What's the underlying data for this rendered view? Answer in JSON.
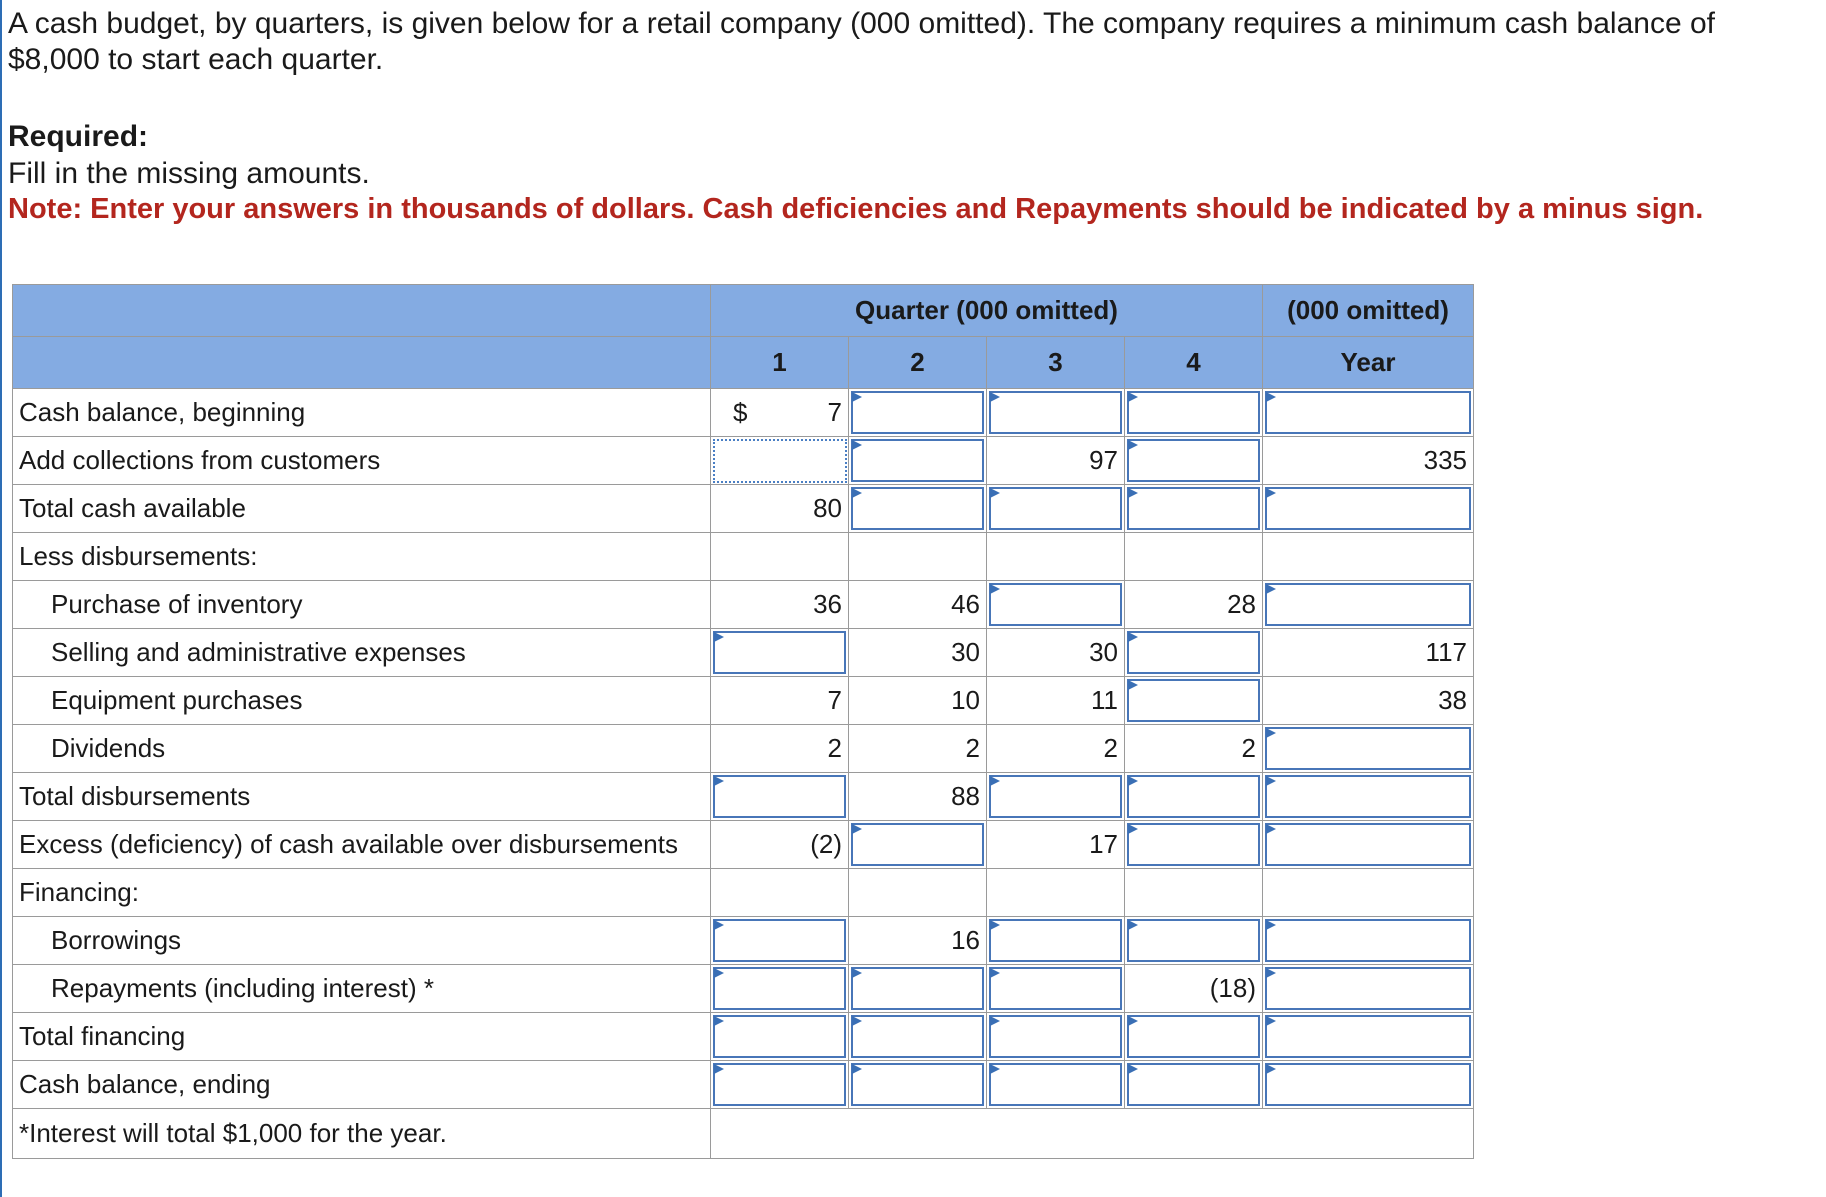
{
  "intro": "A cash budget, by quarters, is given below for a retail company (000 omitted). The company requires a minimum cash balance of $8,000 to start each quarter.",
  "required": {
    "heading": "Required:",
    "text": "Fill in the missing amounts.",
    "note": "Note: Enter your answers in thousands of dollars. Cash deficiencies and Repayments should be indicated by a minus sign."
  },
  "table": {
    "header_quarter": "Quarter (000 omitted)",
    "header_year_group": "(000 omitted)",
    "columns": [
      "1",
      "2",
      "3",
      "4",
      "Year"
    ],
    "currency": "$",
    "rows": [
      {
        "label": "Cash balance, beginning",
        "indent": false,
        "cells": [
          "7",
          null,
          null,
          null,
          null
        ]
      },
      {
        "label": "Add collections from customers",
        "indent": false,
        "cells": [
          null,
          null,
          "97",
          null,
          "335"
        ]
      },
      {
        "label": "Total cash available",
        "indent": false,
        "cells": [
          "80",
          null,
          null,
          null,
          null
        ]
      },
      {
        "label": "Less disbursements:",
        "indent": false,
        "cells": [
          "",
          "",
          "",
          "",
          ""
        ]
      },
      {
        "label": "Purchase of inventory",
        "indent": true,
        "cells": [
          "36",
          "46",
          null,
          "28",
          null
        ]
      },
      {
        "label": "Selling and administrative expenses",
        "indent": true,
        "cells": [
          null,
          "30",
          "30",
          null,
          "117"
        ]
      },
      {
        "label": "Equipment purchases",
        "indent": true,
        "cells": [
          "7",
          "10",
          "11",
          null,
          "38"
        ]
      },
      {
        "label": "Dividends",
        "indent": true,
        "cells": [
          "2",
          "2",
          "2",
          "2",
          null
        ]
      },
      {
        "label": "Total disbursements",
        "indent": false,
        "cells": [
          null,
          "88",
          null,
          null,
          null
        ]
      },
      {
        "label": "Excess (deficiency) of cash available over disbursements",
        "indent": false,
        "cells": [
          "(2)",
          null,
          "17",
          null,
          null
        ]
      },
      {
        "label": "Financing:",
        "indent": false,
        "cells": [
          "",
          "",
          "",
          "",
          ""
        ]
      },
      {
        "label": "Borrowings",
        "indent": true,
        "cells": [
          null,
          "16",
          null,
          null,
          null
        ]
      },
      {
        "label": "Repayments (including interest) *",
        "indent": true,
        "cells": [
          null,
          null,
          null,
          "(18)",
          null
        ]
      },
      {
        "label": "Total financing",
        "indent": false,
        "cells": [
          null,
          null,
          null,
          null,
          null
        ]
      },
      {
        "label": "Cash balance, ending",
        "indent": false,
        "cells": [
          null,
          null,
          null,
          null,
          null
        ]
      }
    ],
    "footnote": "*Interest will total $1,000 for the year."
  }
}
